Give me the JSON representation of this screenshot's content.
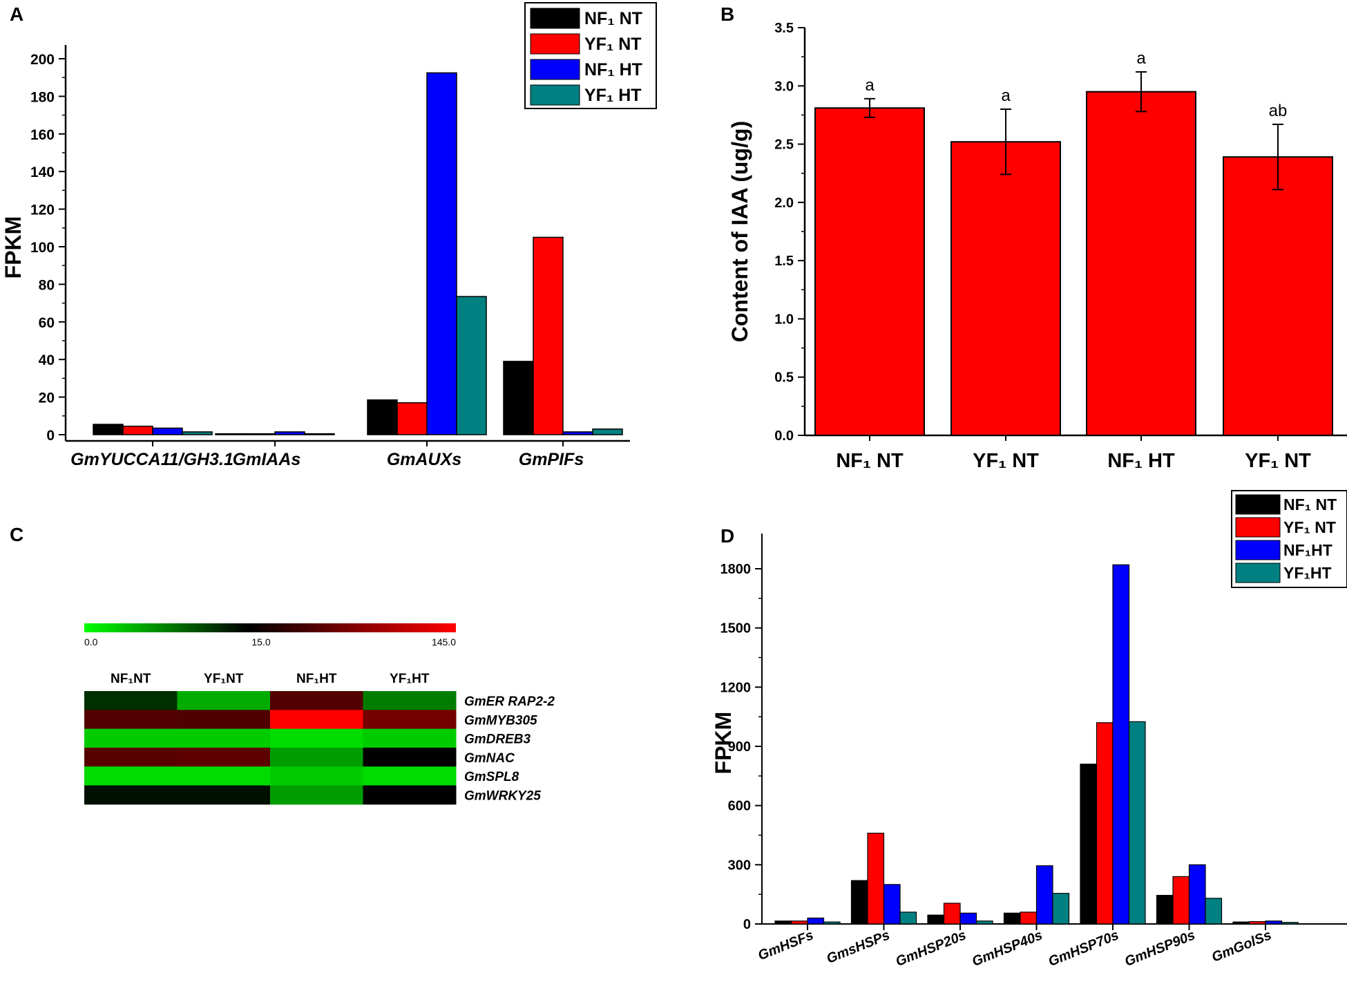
{
  "colors": {
    "nf_nt": "#000000",
    "yf_nt": "#ff0000",
    "nf_ht": "#0000ff",
    "yf_ht": "#008080"
  },
  "chart_data": [
    {
      "panel": "A",
      "type": "bar",
      "ylabel": "FPKM",
      "ylim": [
        0,
        210
      ],
      "yticks": [
        0,
        20,
        40,
        60,
        80,
        100,
        120,
        140,
        160,
        180,
        200
      ],
      "categories": [
        "GmYUCCA11/GH3.1",
        "GmIAAs",
        "GmAUXs",
        "GmPIFs"
      ],
      "legend": [
        "NF₁ NT",
        "YF₁ NT",
        "NF₁ HT",
        "YF₁ HT"
      ],
      "legend_position": "top-right",
      "series": [
        {
          "name": "NF₁ NT",
          "values": [
            5.5,
            0.5,
            18.5,
            39
          ]
        },
        {
          "name": "YF₁ NT",
          "values": [
            4.5,
            0.5,
            17,
            105
          ]
        },
        {
          "name": "NF₁ HT",
          "values": [
            3.5,
            1.5,
            192.5,
            1.5
          ]
        },
        {
          "name": "YF₁ HT",
          "values": [
            1.5,
            0.5,
            73.5,
            3
          ]
        }
      ]
    },
    {
      "panel": "B",
      "type": "bar",
      "ylabel": "Content of IAA (ug/g)",
      "ylim": [
        0,
        3.5
      ],
      "yticks": [
        "0.0",
        "0.5",
        "1.0",
        "1.5",
        "2.0",
        "2.5",
        "3.0",
        "3.5"
      ],
      "categories": [
        "NF₁ NT",
        "YF₁ NT",
        "NF₁ HT",
        "YF₁ NT"
      ],
      "values": [
        2.81,
        2.52,
        2.95,
        2.39
      ],
      "errors": [
        0.08,
        0.28,
        0.17,
        0.28
      ],
      "annotations": [
        "a",
        "a",
        "a",
        "ab"
      ]
    },
    {
      "panel": "C",
      "type": "heatmap",
      "scale_labels": [
        "0.0",
        "15.0",
        "145.0"
      ],
      "columns": [
        "NF₁NT",
        "YF₁NT",
        "NF₁HT",
        "YF₁HT"
      ],
      "rows": [
        "GmER RAP2-2",
        "GmMYB305",
        "GmDREB3",
        "GmNAC",
        "GmSPL8",
        "GmWRKY25"
      ],
      "values": [
        [
          12,
          4,
          20,
          7
        ],
        [
          20,
          18,
          145,
          45
        ],
        [
          2,
          2,
          1,
          2
        ],
        [
          24,
          28,
          5,
          15
        ],
        [
          1,
          1,
          2,
          1
        ],
        [
          14,
          14,
          5,
          15
        ]
      ]
    },
    {
      "panel": "D",
      "type": "bar",
      "ylabel": "FPKM",
      "ylim": [
        0,
        1950
      ],
      "yticks": [
        0,
        300,
        600,
        900,
        1200,
        1500,
        1800
      ],
      "categories": [
        "GmHSFs",
        "GmsHSPs",
        "GmHSP20s",
        "GmHSP40s",
        "GmHSP70s",
        "GmHSP90s",
        "GmGolSs"
      ],
      "legend": [
        "NF₁ NT",
        "YF₁ NT",
        "NF₁HT",
        "YF₁HT"
      ],
      "legend_position": "top-right",
      "series": [
        {
          "name": "NF₁ NT",
          "values": [
            15,
            220,
            45,
            55,
            810,
            145,
            10
          ]
        },
        {
          "name": "YF₁ NT",
          "values": [
            15,
            460,
            105,
            60,
            1020,
            240,
            12
          ]
        },
        {
          "name": "NF₁HT",
          "values": [
            30,
            200,
            55,
            295,
            1820,
            300,
            15
          ]
        },
        {
          "name": "YF₁HT",
          "values": [
            10,
            60,
            15,
            155,
            1025,
            130,
            8
          ]
        }
      ]
    }
  ],
  "panels": {
    "a": "A",
    "b": "B",
    "c": "C",
    "d": "D"
  }
}
